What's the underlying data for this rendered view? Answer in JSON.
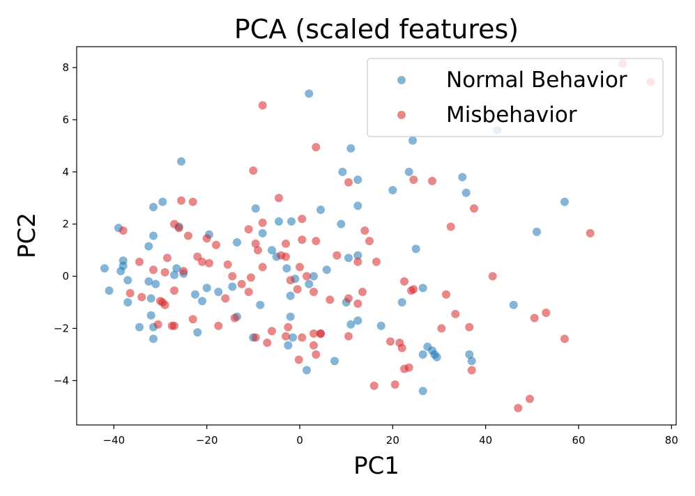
{
  "chart_data": {
    "type": "scatter",
    "title": "PCA (scaled features)",
    "xlabel": "PC1",
    "ylabel": "PC2",
    "xlim": [
      -48,
      81
    ],
    "ylim": [
      -5.7,
      8.8
    ],
    "xticks": [
      -40,
      -20,
      0,
      20,
      40,
      60,
      80
    ],
    "xtick_labels": [
      "−40",
      "−20",
      "0",
      "20",
      "40",
      "60",
      "80"
    ],
    "yticks": [
      -4,
      -2,
      0,
      2,
      4,
      6,
      8
    ],
    "ytick_labels": [
      "−4",
      "−2",
      "0",
      "2",
      "4",
      "6",
      "8"
    ],
    "grid": false,
    "legend_position": "top-right",
    "series": [
      {
        "name": "Normal Behavior",
        "color": "#1f77b4",
        "points": [
          [
            2,
            7.0
          ],
          [
            42.5,
            5.6
          ],
          [
            24.3,
            5.2
          ],
          [
            11,
            4.9
          ],
          [
            -25.5,
            4.4
          ],
          [
            9.2,
            4.0
          ],
          [
            23.5,
            4.0
          ],
          [
            12.5,
            3.7
          ],
          [
            35,
            3.8
          ],
          [
            20,
            3.3
          ],
          [
            35.8,
            3.2
          ],
          [
            57,
            2.85
          ],
          [
            -29.5,
            2.85
          ],
          [
            -31.5,
            2.65
          ],
          [
            -9.5,
            2.6
          ],
          [
            12.5,
            2.7
          ],
          [
            4.5,
            2.55
          ],
          [
            -4.5,
            2.1
          ],
          [
            -1.8,
            2.1
          ],
          [
            8.9,
            2.0
          ],
          [
            -26,
            1.9
          ],
          [
            -39,
            1.85
          ],
          [
            51,
            1.7
          ],
          [
            -8,
            1.65
          ],
          [
            -19.5,
            1.6
          ],
          [
            -31.5,
            1.55
          ],
          [
            -13.5,
            1.3
          ],
          [
            -32.5,
            1.15
          ],
          [
            25,
            1.05
          ],
          [
            -6,
            1.0
          ],
          [
            -5,
            0.75
          ],
          [
            12.5,
            0.8
          ],
          [
            10.5,
            0.7
          ],
          [
            -38,
            0.6
          ],
          [
            -38,
            0.4
          ],
          [
            -42,
            0.3
          ],
          [
            -2.8,
            0.3
          ],
          [
            -26.5,
            0.3
          ],
          [
            5.8,
            0.25
          ],
          [
            -38.5,
            0.2
          ],
          [
            -25,
            0.1
          ],
          [
            -27,
            0.05
          ],
          [
            3,
            0.0
          ],
          [
            -1,
            -0.1
          ],
          [
            -37,
            -0.15
          ],
          [
            -32.5,
            -0.2
          ],
          [
            2,
            -0.3
          ],
          [
            -31,
            -0.3
          ],
          [
            -14.5,
            -0.4
          ],
          [
            -20,
            -0.45
          ],
          [
            -41,
            -0.55
          ],
          [
            -17.5,
            -0.6
          ],
          [
            26.5,
            -0.45
          ],
          [
            -22.5,
            -0.7
          ],
          [
            -2,
            -0.75
          ],
          [
            -32,
            -0.85
          ],
          [
            -21,
            -0.95
          ],
          [
            -37,
            -1.0
          ],
          [
            10,
            -1.0
          ],
          [
            -8.5,
            -1.1
          ],
          [
            46,
            -1.1
          ],
          [
            22,
            -1.0
          ],
          [
            -13.5,
            -1.55
          ],
          [
            -2,
            -1.55
          ],
          [
            -32,
            -1.5
          ],
          [
            12.5,
            -1.7
          ],
          [
            -31.5,
            -1.95
          ],
          [
            -34.5,
            -1.95
          ],
          [
            11,
            -1.85
          ],
          [
            17.5,
            -1.9
          ],
          [
            -22,
            -2.15
          ],
          [
            -31.5,
            -2.4
          ],
          [
            -10,
            -2.35
          ],
          [
            -1.5,
            -2.35
          ],
          [
            -2.5,
            -2.65
          ],
          [
            27.5,
            -2.7
          ],
          [
            28.5,
            -2.85
          ],
          [
            29,
            -3.0
          ],
          [
            29.5,
            -3.1
          ],
          [
            26.5,
            -3.0
          ],
          [
            36.5,
            -3.0
          ],
          [
            37,
            -3.25
          ],
          [
            7.5,
            -3.25
          ],
          [
            1.5,
            -3.6
          ],
          [
            26.5,
            -4.4
          ]
        ]
      },
      {
        "name": "Misbehavior",
        "color": "#d62728",
        "points": [
          [
            69.5,
            8.15
          ],
          [
            75.5,
            7.45
          ],
          [
            -8,
            6.55
          ],
          [
            3.5,
            4.95
          ],
          [
            -10,
            4.05
          ],
          [
            24.5,
            3.7
          ],
          [
            10.5,
            3.6
          ],
          [
            28.5,
            3.65
          ],
          [
            -4.5,
            3.0
          ],
          [
            -25.5,
            2.9
          ],
          [
            -23,
            2.85
          ],
          [
            37.5,
            2.6
          ],
          [
            32.5,
            1.9
          ],
          [
            -27,
            2.0
          ],
          [
            -26,
            1.85
          ],
          [
            0.5,
            2.2
          ],
          [
            -11,
            1.8
          ],
          [
            14,
            1.75
          ],
          [
            62.5,
            1.65
          ],
          [
            -38,
            1.75
          ],
          [
            -24,
            1.55
          ],
          [
            -20,
            1.45
          ],
          [
            -8,
            2.05
          ],
          [
            -18,
            1.2
          ],
          [
            -9.5,
            1.25
          ],
          [
            0.5,
            1.4
          ],
          [
            -9,
            1.0
          ],
          [
            3.5,
            1.35
          ],
          [
            -3,
            1.25
          ],
          [
            15,
            1.35
          ],
          [
            -22,
            0.75
          ],
          [
            -21,
            0.55
          ],
          [
            -19.5,
            0.5
          ],
          [
            -28.5,
            0.7
          ],
          [
            -3,
            0.75
          ],
          [
            -15.5,
            0.45
          ],
          [
            -4,
            0.8
          ],
          [
            8,
            0.8
          ],
          [
            16.5,
            0.55
          ],
          [
            12.5,
            0.55
          ],
          [
            -8,
            0.35
          ],
          [
            0,
            0.35
          ],
          [
            -31.5,
            0.25
          ],
          [
            -29,
            0.15
          ],
          [
            -25,
            0.2
          ],
          [
            -34.5,
            0.55
          ],
          [
            -14.5,
            0.0
          ],
          [
            -10.5,
            -0.05
          ],
          [
            1.5,
            0.0
          ],
          [
            41.5,
            0.0
          ],
          [
            -12.5,
            -0.3
          ],
          [
            -11,
            -0.6
          ],
          [
            -2,
            -0.15
          ],
          [
            22.5,
            -0.2
          ],
          [
            24.5,
            -0.5
          ],
          [
            24,
            -0.55
          ],
          [
            -0.5,
            -0.5
          ],
          [
            -36.5,
            -0.65
          ],
          [
            3,
            -0.6
          ],
          [
            -16,
            -0.85
          ],
          [
            -34,
            -0.8
          ],
          [
            31.5,
            -0.7
          ],
          [
            6.5,
            -0.9
          ],
          [
            13.5,
            -0.6
          ],
          [
            -27,
            -0.55
          ],
          [
            -29.5,
            -1.0
          ],
          [
            -30,
            -0.95
          ],
          [
            -29,
            -1.1
          ],
          [
            10.5,
            -0.85
          ],
          [
            12.5,
            -1.05
          ],
          [
            -14,
            -1.6
          ],
          [
            -23,
            -1.65
          ],
          [
            -17.5,
            -1.9
          ],
          [
            -30.5,
            -1.85
          ],
          [
            -27,
            -1.9
          ],
          [
            -27.5,
            -1.9
          ],
          [
            -2.5,
            -1.95
          ],
          [
            33.5,
            -1.45
          ],
          [
            53,
            -1.4
          ],
          [
            50.5,
            -1.6
          ],
          [
            36.5,
            -1.95
          ],
          [
            30.5,
            -2.0
          ],
          [
            -6,
            -2.1
          ],
          [
            0.5,
            -2.35
          ],
          [
            -3,
            -2.3
          ],
          [
            -9.5,
            -2.35
          ],
          [
            3,
            -2.2
          ],
          [
            4.5,
            -2.2
          ],
          [
            4.5,
            -2.2
          ],
          [
            -7,
            -2.55
          ],
          [
            10.5,
            -2.3
          ],
          [
            19.5,
            -2.5
          ],
          [
            21.5,
            -2.55
          ],
          [
            22,
            -2.75
          ],
          [
            3,
            -2.65
          ],
          [
            57,
            -2.4
          ],
          [
            3.5,
            -3.0
          ],
          [
            -0.2,
            -3.2
          ],
          [
            22.5,
            -3.55
          ],
          [
            23.5,
            -3.5
          ],
          [
            37,
            -3.6
          ],
          [
            16,
            -4.2
          ],
          [
            20.5,
            -4.15
          ],
          [
            49.5,
            -4.7
          ],
          [
            47,
            -5.05
          ]
        ]
      }
    ]
  }
}
